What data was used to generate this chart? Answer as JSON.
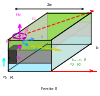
{
  "bg": "#ffffff",
  "label_ferrite": "Ferrite II",
  "label_eps1": "\\u03b5\\u2081, \\u03bc\\u2081",
  "label_eps2": "\\u03b5\\u2082, \\u03bc\\u2082"
}
